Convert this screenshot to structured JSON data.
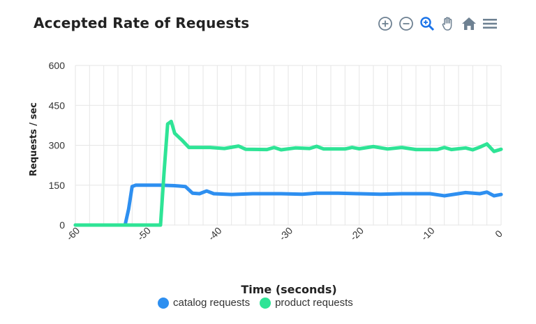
{
  "chart_data": {
    "type": "line",
    "title": "Accepted Rate of Requests",
    "xlabel": "Time (seconds)",
    "ylabel": "Requests / sec",
    "xlim": [
      -60,
      0
    ],
    "ylim": [
      0,
      600
    ],
    "x_ticks": [
      "-60",
      "-50",
      "-40",
      "-30",
      "-20",
      "-10",
      "0"
    ],
    "y_ticks": [
      "0",
      "150",
      "300",
      "450",
      "600"
    ],
    "grid": true,
    "legend_position": "bottom",
    "series": [
      {
        "name": "catalog requests",
        "color": "#2e8ff0",
        "points": [
          [
            -60,
            0
          ],
          [
            -55,
            0
          ],
          [
            -53,
            0
          ],
          [
            -52.5,
            60
          ],
          [
            -52,
            145
          ],
          [
            -51.5,
            150
          ],
          [
            -48,
            150
          ],
          [
            -46,
            148
          ],
          [
            -44.5,
            145
          ],
          [
            -43.5,
            120
          ],
          [
            -42.5,
            118
          ],
          [
            -41.5,
            128
          ],
          [
            -40.5,
            118
          ],
          [
            -38,
            115
          ],
          [
            -35,
            118
          ],
          [
            -31,
            118
          ],
          [
            -28,
            116
          ],
          [
            -26,
            120
          ],
          [
            -23,
            120
          ],
          [
            -20,
            118
          ],
          [
            -17,
            116
          ],
          [
            -14,
            118
          ],
          [
            -10,
            118
          ],
          [
            -8,
            110
          ],
          [
            -5,
            122
          ],
          [
            -3,
            118
          ],
          [
            -2,
            124
          ],
          [
            -1,
            110
          ],
          [
            0,
            115
          ]
        ]
      },
      {
        "name": "product requests",
        "color": "#2ee496",
        "points": [
          [
            -60,
            0
          ],
          [
            -53,
            0
          ],
          [
            -49,
            0
          ],
          [
            -48,
            0
          ],
          [
            -47.5,
            200
          ],
          [
            -47,
            380
          ],
          [
            -46.5,
            390
          ],
          [
            -46,
            345
          ],
          [
            -45,
            320
          ],
          [
            -44,
            292
          ],
          [
            -41,
            292
          ],
          [
            -39,
            288
          ],
          [
            -37,
            297
          ],
          [
            -36,
            285
          ],
          [
            -33,
            284
          ],
          [
            -32,
            292
          ],
          [
            -31,
            283
          ],
          [
            -29,
            290
          ],
          [
            -27,
            288
          ],
          [
            -26,
            296
          ],
          [
            -25,
            286
          ],
          [
            -22,
            286
          ],
          [
            -21,
            292
          ],
          [
            -20,
            287
          ],
          [
            -18,
            295
          ],
          [
            -16,
            286
          ],
          [
            -14,
            292
          ],
          [
            -12,
            284
          ],
          [
            -9,
            284
          ],
          [
            -8,
            292
          ],
          [
            -7,
            284
          ],
          [
            -5,
            290
          ],
          [
            -4,
            283
          ],
          [
            -3,
            293
          ],
          [
            -2,
            305
          ],
          [
            -1,
            277
          ],
          [
            0,
            285
          ]
        ]
      }
    ]
  },
  "toolbar": {
    "zoom_in_icon": "zoom-in-icon",
    "zoom_out_icon": "zoom-out-icon",
    "selection_zoom_icon": "selection-zoom-icon",
    "pan_icon": "pan-hand-icon",
    "reset_icon": "home-icon",
    "menu_icon": "menu-icon",
    "active_color": "#1a73e8",
    "icon_color": "#6e8192"
  }
}
